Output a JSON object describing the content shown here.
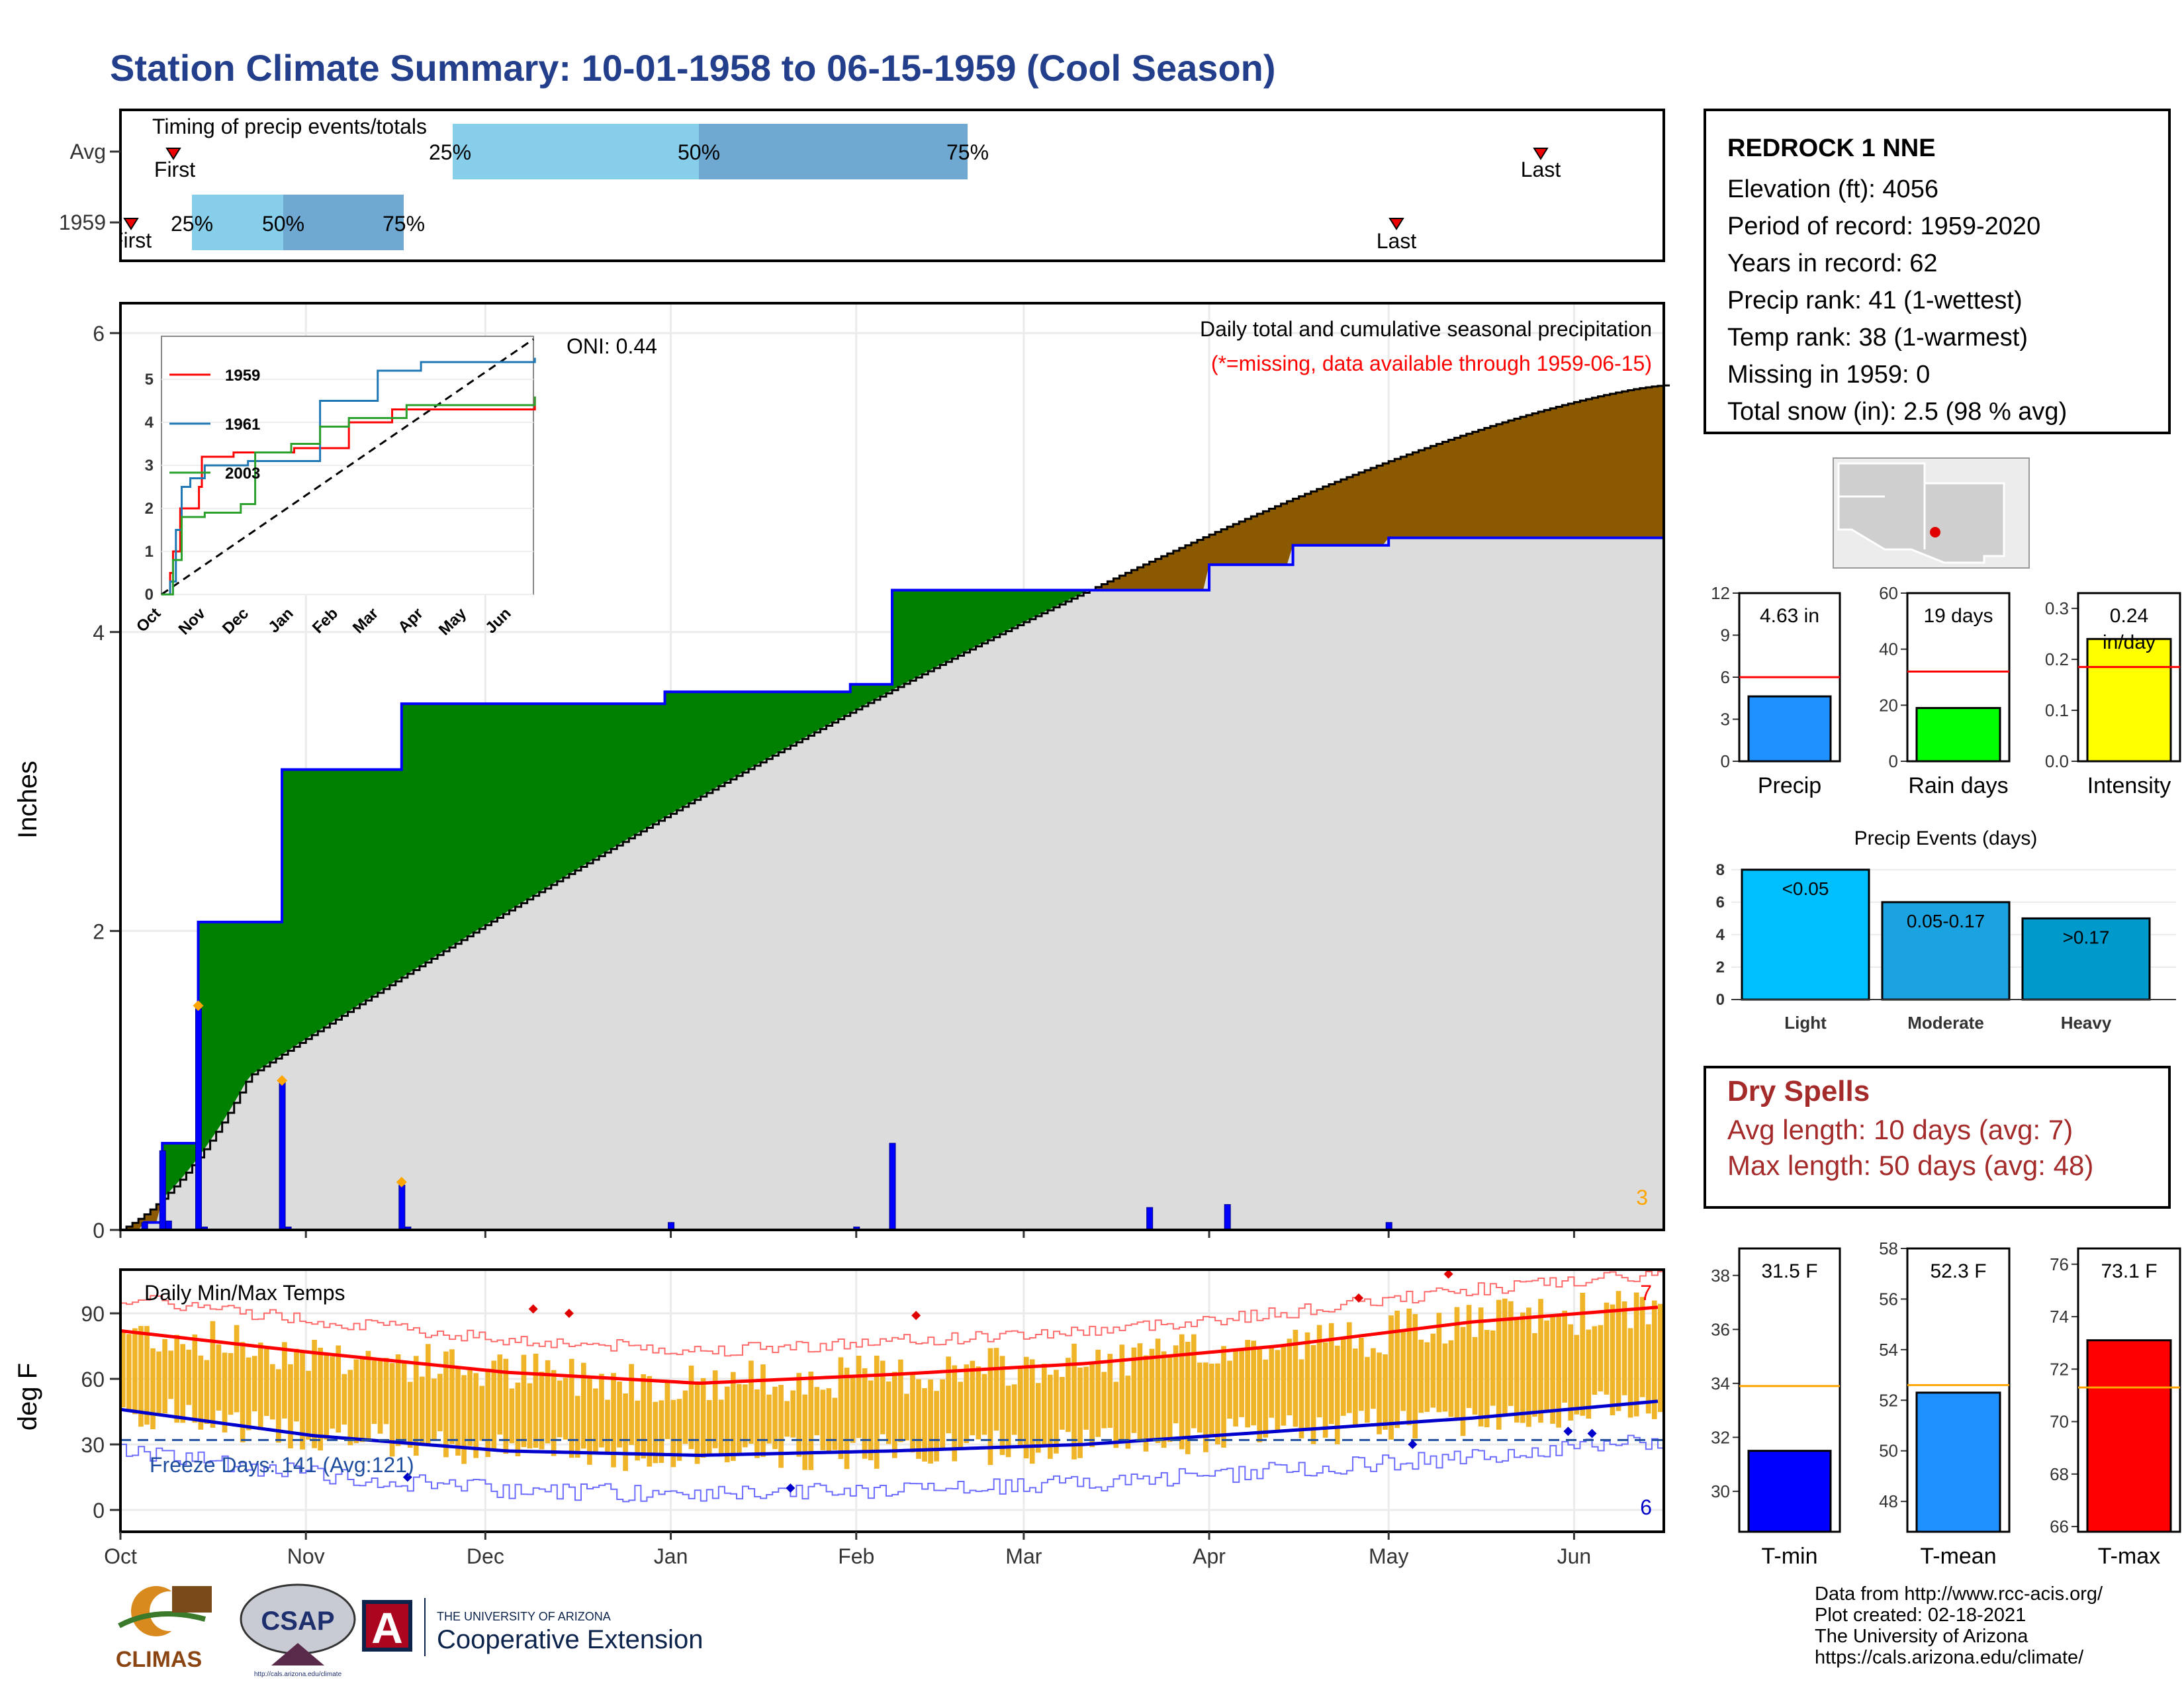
{
  "title": "Station Climate Summary: 10-01-1958 to 06-15-1959 (Cool Season)",
  "colors": {
    "title": "#233f8c",
    "deficit": "#008000",
    "surplus": "#8b5a00",
    "avg_area": "#dcdcdc",
    "daily_bar": "#0000ff",
    "temp_bar": "#f0b429",
    "tmax_line": "#ff0000",
    "tmin_line": "#0000cc",
    "dry": "#a52a2a"
  },
  "station": {
    "name": "REDROCK 1 NNE",
    "lines": [
      "Elevation (ft): 4056",
      "Period of record: 1959-2020",
      "Years in record: 62",
      "Precip rank: 41 (1-wettest)",
      "Temp rank: 38 (1-warmest)",
      "Missing in 1959: 0",
      "Total snow (in): 2.5 (98 % avg)"
    ]
  },
  "timing": {
    "label": "Timing of precip events/totals",
    "rows": [
      "Avg",
      "1959"
    ],
    "avg": {
      "first": "First",
      "last": "Last",
      "p25": "25%",
      "p50": "50%",
      "p75": "75%"
    },
    "yr": {
      "first": "First",
      "last": "Last",
      "p25": "25%",
      "p50": "50%",
      "p75": "75%"
    }
  },
  "precip_panel": {
    "ylabel": "Inches",
    "legend_line1": "Daily total and cumulative seasonal precipitation",
    "legend_line2": "(*=missing, data available through 1959-06-15)",
    "oni": "ONI: 0.44",
    "count_label": "3",
    "inset_legend": [
      "1959",
      "1961",
      "2003"
    ],
    "inset_months": [
      "Oct",
      "Nov",
      "Dec",
      "Jan",
      "Feb",
      "Mar",
      "Apr",
      "May",
      "Jun"
    ]
  },
  "temp_panel": {
    "ylabel": "deg F",
    "label": "Daily Min/Max Temps",
    "freeze": "Freeze Days: 141 (Avg:121)",
    "max_count": "7",
    "min_count": "6"
  },
  "months": [
    "Oct",
    "Nov",
    "Dec",
    "Jan",
    "Feb",
    "Mar",
    "Apr",
    "May",
    "Jun"
  ],
  "summary_bars": {
    "precip": {
      "label": "Precip",
      "value_text": "4.63 in",
      "value": 4.63,
      "avg": 6.0,
      "ticks": [
        "0",
        "3",
        "6",
        "9",
        "12"
      ]
    },
    "raindays": {
      "label": "Rain days",
      "value_text": "19 days",
      "value": 19,
      "avg": 32,
      "ticks": [
        "0",
        "20",
        "40",
        "60"
      ]
    },
    "intensity": {
      "label": "Intensity",
      "value_text": "0.24",
      "unit": "in/day",
      "value": 0.24,
      "avg": 0.185,
      "ticks": [
        "0.0",
        "0.1",
        "0.2",
        "0.3"
      ]
    }
  },
  "events": {
    "title": "Precip Events (days)",
    "categories": [
      "Light",
      "Moderate",
      "Heavy"
    ],
    "labels": [
      "<0.05",
      "0.05-0.17",
      ">0.17"
    ],
    "values": [
      8,
      6,
      5
    ],
    "ticks": [
      "0",
      "2",
      "4",
      "6",
      "8"
    ]
  },
  "dry_spells": {
    "title": "Dry Spells",
    "avg": "Avg length: 10 days (avg: 7)",
    "max": "Max length: 50 days (avg: 48)"
  },
  "temp_bars": {
    "tmin": {
      "label": "T-min",
      "value_text": "31.5 F",
      "value": 31.5,
      "avg": 33.9,
      "ticks": [
        "30",
        "32",
        "34",
        "36",
        "38"
      ]
    },
    "tmean": {
      "label": "T-mean",
      "value_text": "52.3 F",
      "value": 52.3,
      "avg": 52.6,
      "ticks": [
        "48",
        "50",
        "52",
        "54",
        "56",
        "58"
      ]
    },
    "tmax": {
      "label": "T-max",
      "value_text": "73.1 F",
      "value": 73.1,
      "avg": 71.3,
      "ticks": [
        "66",
        "68",
        "70",
        "72",
        "74",
        "76"
      ]
    }
  },
  "footer": {
    "lines": [
      "Data from http://www.rcc-acis.org/",
      "Plot created: 02-18-2021",
      "The University of Arizona",
      "https://cals.arizona.edu/climate/"
    ],
    "climas": "CLIMAS",
    "csap": "CSAP",
    "csap_url": "http://cals.arizona.edu/climate",
    "ua_small": "THE UNIVERSITY OF ARIZONA",
    "ua_big": "Cooperative Extension"
  },
  "chart_data": [
    {
      "type": "area",
      "title": "Daily total and cumulative seasonal precipitation",
      "ylabel": "Inches",
      "ylim": [
        0,
        6.2
      ],
      "x": [
        "10-01",
        "10-05",
        "10-08",
        "10-13",
        "10-14",
        "10-28",
        "11-17",
        "12-31",
        "01-31",
        "02-07",
        "03-01",
        "04-01",
        "04-15",
        "05-01",
        "06-15"
      ],
      "series": [
        {
          "name": "1959",
          "values": [
            0,
            0.05,
            0.58,
            0.58,
            2.06,
            3.08,
            3.52,
            3.6,
            3.65,
            4.28,
            4.28,
            4.45,
            4.58,
            4.63,
            4.63
          ]
        }
      ]
    },
    {
      "type": "bar",
      "title": "Daily Min/Max Temps",
      "ylabel": "deg F",
      "ylim": [
        -10,
        110
      ],
      "categories": [
        "Oct",
        "Nov",
        "Dec",
        "Jan",
        "Feb",
        "Mar",
        "Apr",
        "May",
        "Jun"
      ],
      "series": [
        {
          "name": "T-max avg",
          "values": [
            82,
            72,
            63,
            58,
            62,
            67,
            75,
            86,
            93
          ]
        },
        {
          "name": "T-min avg",
          "values": [
            46,
            34,
            27,
            25,
            27,
            30,
            36,
            42,
            50
          ]
        }
      ]
    }
  ]
}
